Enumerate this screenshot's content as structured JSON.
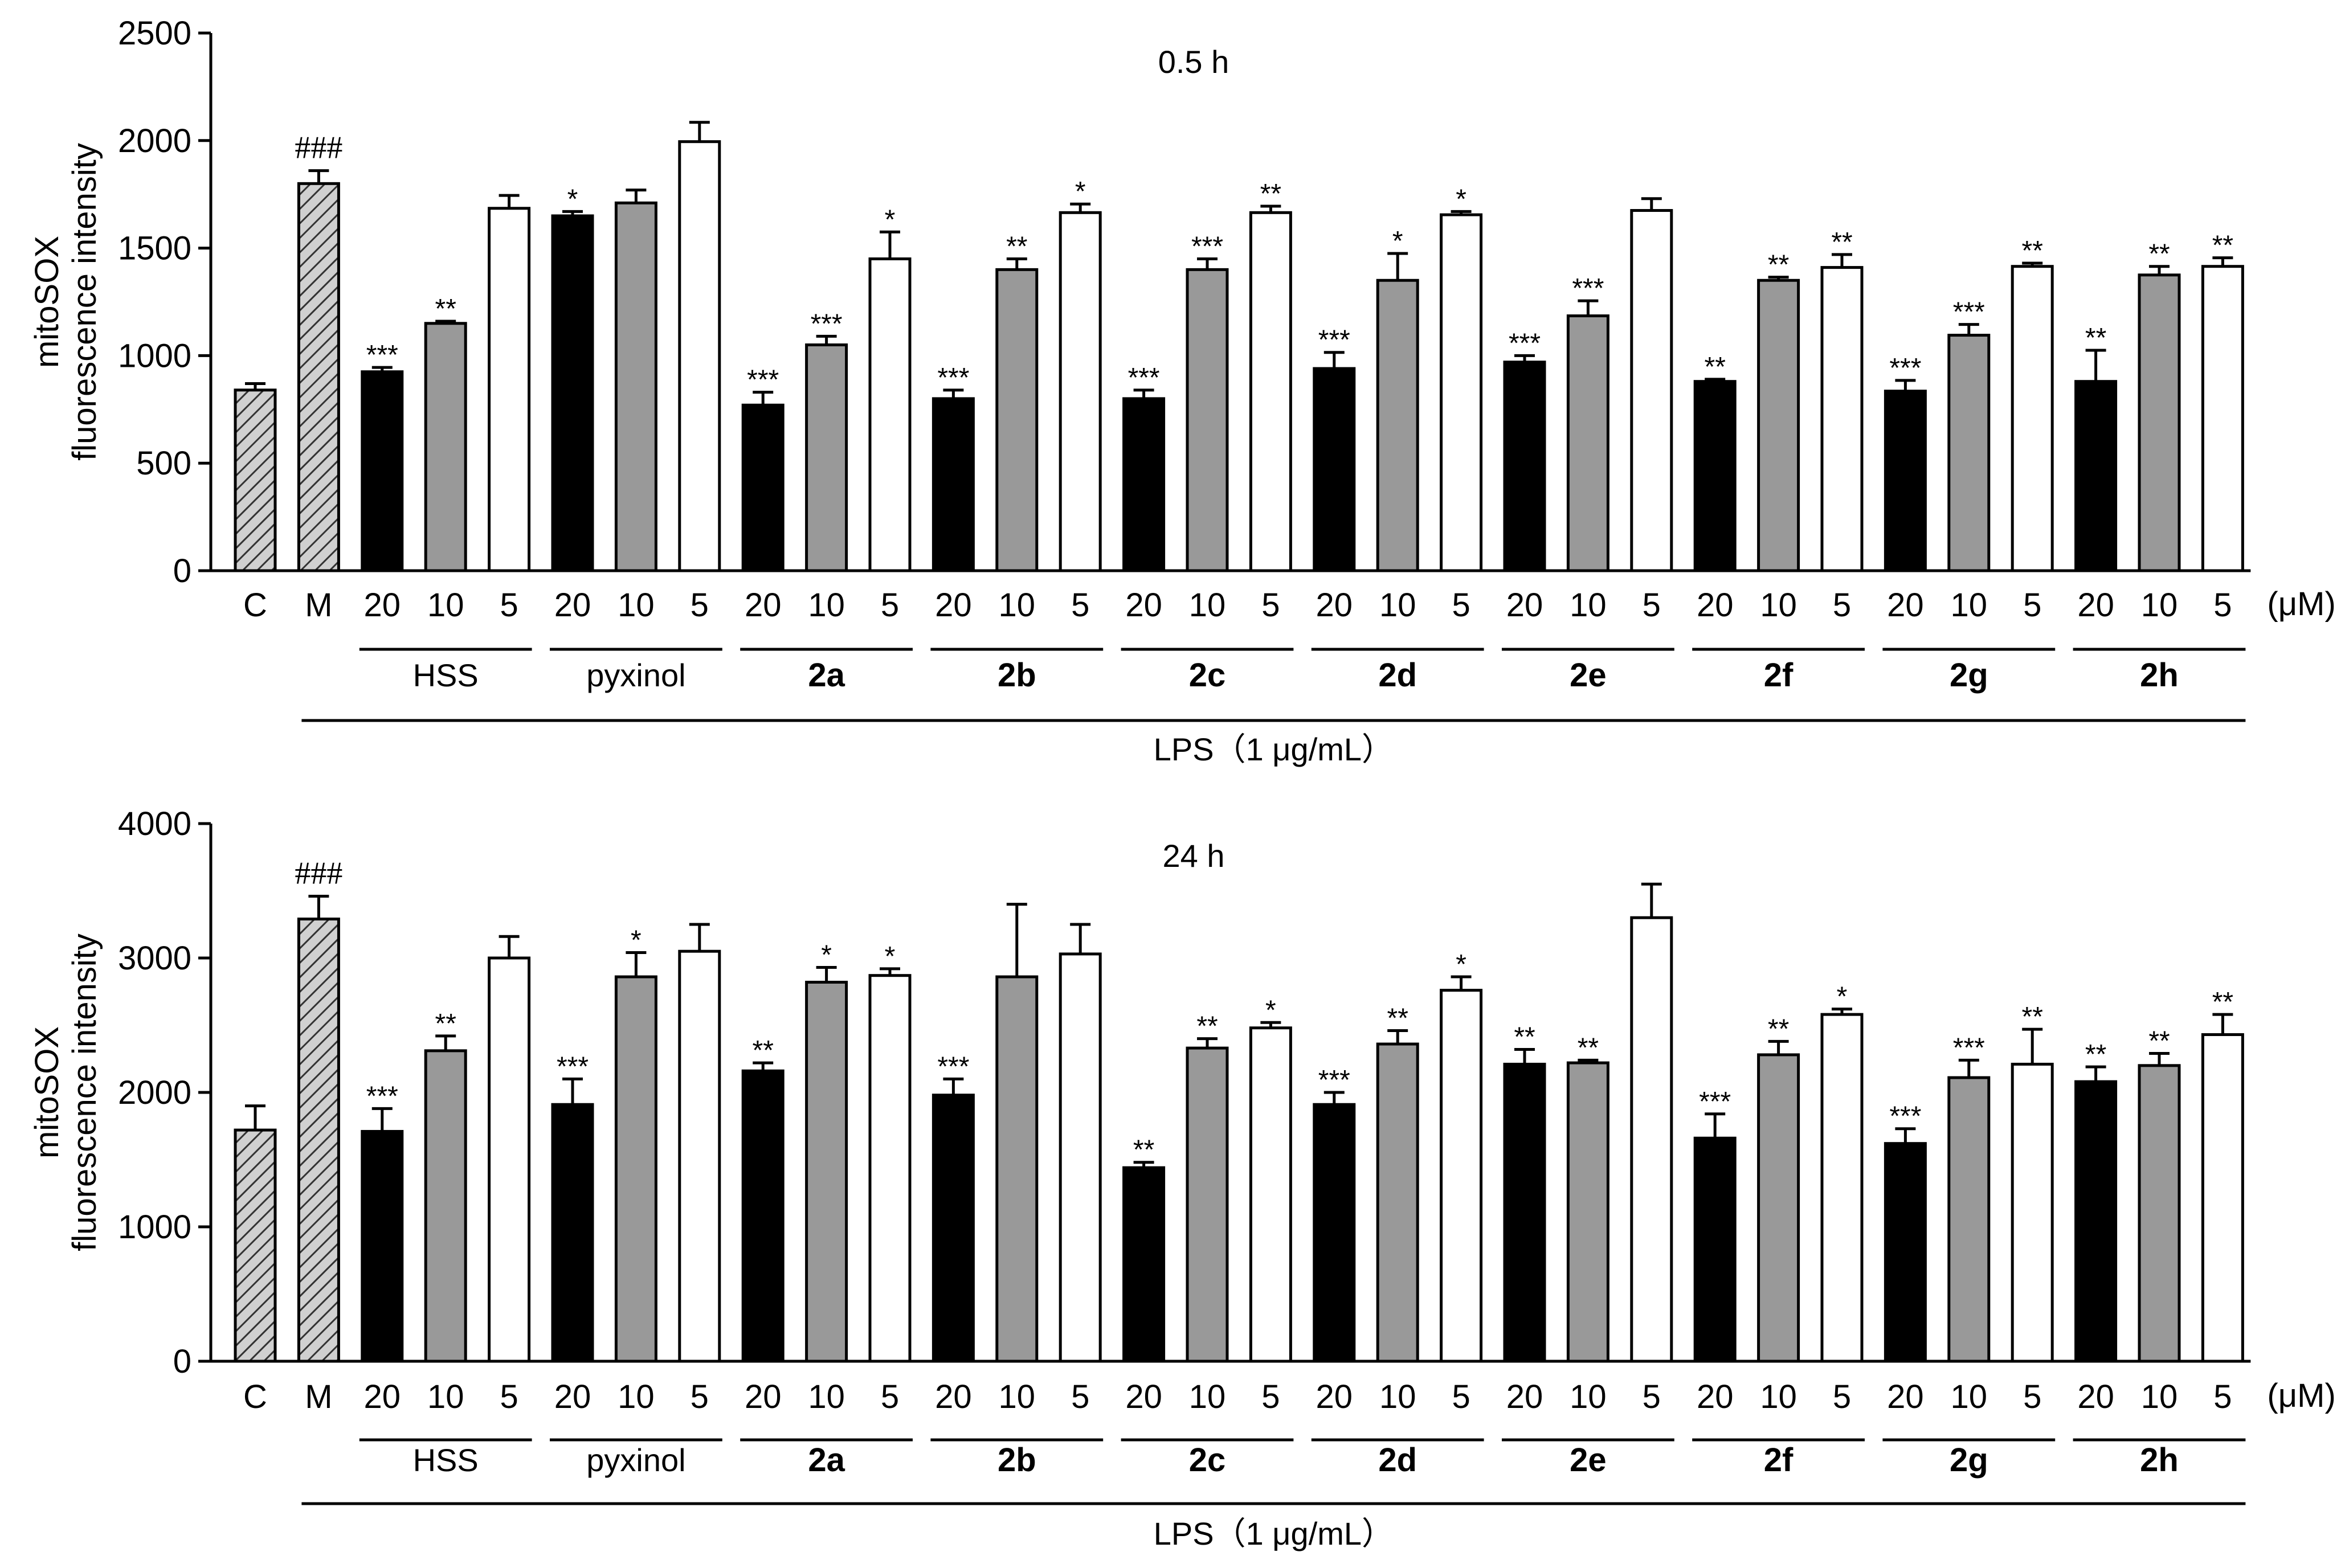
{
  "chart_data": [
    {
      "type": "bar",
      "title": "0.5 h",
      "ylabel_lines": [
        "mitoSOX",
        "fluorescence intensity"
      ],
      "ylim": [
        0,
        2500
      ],
      "yticks": [
        0,
        500,
        1000,
        1500,
        2000,
        2500
      ],
      "unit_label": "(μM)",
      "condition_label": "LPS（1 μg/mL）",
      "bars": [
        {
          "label": "C",
          "group": "",
          "value": 840,
          "err": 30,
          "sig": "",
          "fill": "hatch"
        },
        {
          "label": "M",
          "group": "",
          "value": 1800,
          "err": 60,
          "sig": "###",
          "fill": "hatch"
        },
        {
          "label": "20",
          "group": "HSS",
          "value": 925,
          "err": 20,
          "sig": "***",
          "fill": "black"
        },
        {
          "label": "10",
          "group": "HSS",
          "value": 1150,
          "err": 10,
          "sig": "**",
          "fill": "gray"
        },
        {
          "label": "5",
          "group": "HSS",
          "value": 1685,
          "err": 60,
          "sig": "",
          "fill": "white"
        },
        {
          "label": "20",
          "group": "pyxinol",
          "value": 1650,
          "err": 20,
          "sig": "*",
          "fill": "black"
        },
        {
          "label": "10",
          "group": "pyxinol",
          "value": 1710,
          "err": 60,
          "sig": "",
          "fill": "gray"
        },
        {
          "label": "5",
          "group": "pyxinol",
          "value": 1995,
          "err": 90,
          "sig": "",
          "fill": "white"
        },
        {
          "label": "20",
          "group": "2a",
          "value": 770,
          "err": 60,
          "sig": "***",
          "fill": "black"
        },
        {
          "label": "10",
          "group": "2a",
          "value": 1050,
          "err": 40,
          "sig": "***",
          "fill": "gray"
        },
        {
          "label": "5",
          "group": "2a",
          "value": 1450,
          "err": 125,
          "sig": "*",
          "fill": "white"
        },
        {
          "label": "20",
          "group": "2b",
          "value": 800,
          "err": 40,
          "sig": "***",
          "fill": "black"
        },
        {
          "label": "10",
          "group": "2b",
          "value": 1400,
          "err": 50,
          "sig": "**",
          "fill": "gray"
        },
        {
          "label": "5",
          "group": "2b",
          "value": 1665,
          "err": 40,
          "sig": "*",
          "fill": "white"
        },
        {
          "label": "20",
          "group": "2c",
          "value": 800,
          "err": 40,
          "sig": "***",
          "fill": "black"
        },
        {
          "label": "10",
          "group": "2c",
          "value": 1400,
          "err": 50,
          "sig": "***",
          "fill": "gray"
        },
        {
          "label": "5",
          "group": "2c",
          "value": 1665,
          "err": 30,
          "sig": "**",
          "fill": "white"
        },
        {
          "label": "20",
          "group": "2d",
          "value": 940,
          "err": 75,
          "sig": "***",
          "fill": "black"
        },
        {
          "label": "10",
          "group": "2d",
          "value": 1350,
          "err": 125,
          "sig": "*",
          "fill": "gray"
        },
        {
          "label": "5",
          "group": "2d",
          "value": 1655,
          "err": 15,
          "sig": "*",
          "fill": "white"
        },
        {
          "label": "20",
          "group": "2e",
          "value": 970,
          "err": 30,
          "sig": "***",
          "fill": "black"
        },
        {
          "label": "10",
          "group": "2e",
          "value": 1185,
          "err": 70,
          "sig": "***",
          "fill": "gray"
        },
        {
          "label": "5",
          "group": "2e",
          "value": 1675,
          "err": 55,
          "sig": "",
          "fill": "white"
        },
        {
          "label": "20",
          "group": "2f",
          "value": 880,
          "err": 10,
          "sig": "**",
          "fill": "black"
        },
        {
          "label": "10",
          "group": "2f",
          "value": 1350,
          "err": 15,
          "sig": "**",
          "fill": "gray"
        },
        {
          "label": "5",
          "group": "2f",
          "value": 1410,
          "err": 60,
          "sig": "**",
          "fill": "white"
        },
        {
          "label": "20",
          "group": "2g",
          "value": 835,
          "err": 50,
          "sig": "***",
          "fill": "black"
        },
        {
          "label": "10",
          "group": "2g",
          "value": 1095,
          "err": 50,
          "sig": "***",
          "fill": "gray"
        },
        {
          "label": "5",
          "group": "2g",
          "value": 1415,
          "err": 15,
          "sig": "**",
          "fill": "white"
        },
        {
          "label": "20",
          "group": "2h",
          "value": 880,
          "err": 145,
          "sig": "**",
          "fill": "black"
        },
        {
          "label": "10",
          "group": "2h",
          "value": 1375,
          "err": 40,
          "sig": "**",
          "fill": "gray"
        },
        {
          "label": "5",
          "group": "2h",
          "value": 1415,
          "err": 40,
          "sig": "**",
          "fill": "white"
        }
      ],
      "groups": [
        "HSS",
        "pyxinol",
        "2a",
        "2b",
        "2c",
        "2d",
        "2e",
        "2f",
        "2g",
        "2h"
      ]
    },
    {
      "type": "bar",
      "title": "24 h",
      "ylabel_lines": [
        "mitoSOX",
        "fluorescence intensity"
      ],
      "ylim": [
        0,
        4000
      ],
      "yticks": [
        0,
        1000,
        2000,
        3000,
        4000
      ],
      "unit_label": "(μM)",
      "condition_label": "LPS（1 μg/mL）",
      "bars": [
        {
          "label": "C",
          "group": "",
          "value": 1720,
          "err": 180,
          "sig": "",
          "fill": "hatch"
        },
        {
          "label": "M",
          "group": "",
          "value": 3290,
          "err": 170,
          "sig": "###",
          "fill": "hatch"
        },
        {
          "label": "20",
          "group": "HSS",
          "value": 1710,
          "err": 170,
          "sig": "***",
          "fill": "black"
        },
        {
          "label": "10",
          "group": "HSS",
          "value": 2310,
          "err": 110,
          "sig": "**",
          "fill": "gray"
        },
        {
          "label": "5",
          "group": "HSS",
          "value": 3000,
          "err": 160,
          "sig": "",
          "fill": "white"
        },
        {
          "label": "20",
          "group": "pyxinol",
          "value": 1910,
          "err": 190,
          "sig": "***",
          "fill": "black"
        },
        {
          "label": "10",
          "group": "pyxinol",
          "value": 2860,
          "err": 180,
          "sig": "*",
          "fill": "gray"
        },
        {
          "label": "5",
          "group": "pyxinol",
          "value": 3050,
          "err": 200,
          "sig": "",
          "fill": "white"
        },
        {
          "label": "20",
          "group": "2a",
          "value": 2160,
          "err": 60,
          "sig": "**",
          "fill": "black"
        },
        {
          "label": "10",
          "group": "2a",
          "value": 2820,
          "err": 110,
          "sig": "*",
          "fill": "gray"
        },
        {
          "label": "5",
          "group": "2a",
          "value": 2870,
          "err": 50,
          "sig": "*",
          "fill": "white"
        },
        {
          "label": "20",
          "group": "2b",
          "value": 1980,
          "err": 120,
          "sig": "***",
          "fill": "black"
        },
        {
          "label": "10",
          "group": "2b",
          "value": 2860,
          "err": 540,
          "sig": "",
          "fill": "gray"
        },
        {
          "label": "5",
          "group": "2b",
          "value": 3030,
          "err": 220,
          "sig": "",
          "fill": "white"
        },
        {
          "label": "20",
          "group": "2c",
          "value": 1440,
          "err": 40,
          "sig": "**",
          "fill": "black"
        },
        {
          "label": "10",
          "group": "2c",
          "value": 2330,
          "err": 70,
          "sig": "**",
          "fill": "gray"
        },
        {
          "label": "5",
          "group": "2c",
          "value": 2480,
          "err": 40,
          "sig": "*",
          "fill": "white"
        },
        {
          "label": "20",
          "group": "2d",
          "value": 1910,
          "err": 90,
          "sig": "***",
          "fill": "black"
        },
        {
          "label": "10",
          "group": "2d",
          "value": 2360,
          "err": 100,
          "sig": "**",
          "fill": "gray"
        },
        {
          "label": "5",
          "group": "2d",
          "value": 2760,
          "err": 100,
          "sig": "*",
          "fill": "white"
        },
        {
          "label": "20",
          "group": "2e",
          "value": 2210,
          "err": 110,
          "sig": "**",
          "fill": "black"
        },
        {
          "label": "10",
          "group": "2e",
          "value": 2220,
          "err": 20,
          "sig": "**",
          "fill": "gray"
        },
        {
          "label": "5",
          "group": "2e",
          "value": 3300,
          "err": 250,
          "sig": "",
          "fill": "white"
        },
        {
          "label": "20",
          "group": "2f",
          "value": 1660,
          "err": 180,
          "sig": "***",
          "fill": "black"
        },
        {
          "label": "10",
          "group": "2f",
          "value": 2280,
          "err": 100,
          "sig": "**",
          "fill": "gray"
        },
        {
          "label": "5",
          "group": "2f",
          "value": 2580,
          "err": 40,
          "sig": "*",
          "fill": "white"
        },
        {
          "label": "20",
          "group": "2g",
          "value": 1620,
          "err": 110,
          "sig": "***",
          "fill": "black"
        },
        {
          "label": "10",
          "group": "2g",
          "value": 2110,
          "err": 130,
          "sig": "***",
          "fill": "gray"
        },
        {
          "label": "5",
          "group": "2g",
          "value": 2210,
          "err": 260,
          "sig": "**",
          "fill": "white"
        },
        {
          "label": "20",
          "group": "2h",
          "value": 2080,
          "err": 110,
          "sig": "**",
          "fill": "black"
        },
        {
          "label": "10",
          "group": "2h",
          "value": 2200,
          "err": 90,
          "sig": "**",
          "fill": "gray"
        },
        {
          "label": "5",
          "group": "2h",
          "value": 2430,
          "err": 150,
          "sig": "**",
          "fill": "white"
        }
      ],
      "groups": [
        "HSS",
        "pyxinol",
        "2a",
        "2b",
        "2c",
        "2d",
        "2e",
        "2f",
        "2g",
        "2h"
      ]
    }
  ],
  "colors": {
    "black": "#000000",
    "gray": "#999999",
    "white": "#ffffff",
    "hatch_bg": "#cccccc"
  }
}
